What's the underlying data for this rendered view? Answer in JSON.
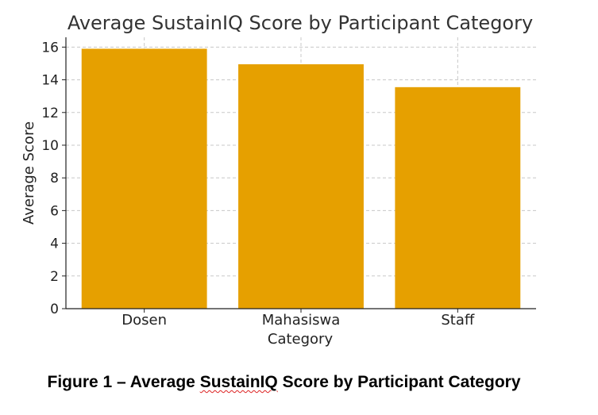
{
  "chart_data": {
    "type": "bar",
    "title": "Average SustainIQ Score by Participant Category",
    "xlabel": "Category",
    "ylabel": "Average Score",
    "categories": [
      "Dosen",
      "Mahasiswa",
      "Staff"
    ],
    "values": [
      15.9,
      14.95,
      13.55
    ],
    "ylim": [
      0,
      16.6
    ],
    "yticks": [
      "0",
      "2",
      "4",
      "6",
      "8",
      "10",
      "12",
      "14",
      "16"
    ],
    "grid": true,
    "bar_color": "#e6a000"
  },
  "caption": {
    "prefix": "Figure 1 – Average ",
    "flagged_word": "SustainIQ",
    "suffix": " Score by Participant Category"
  }
}
